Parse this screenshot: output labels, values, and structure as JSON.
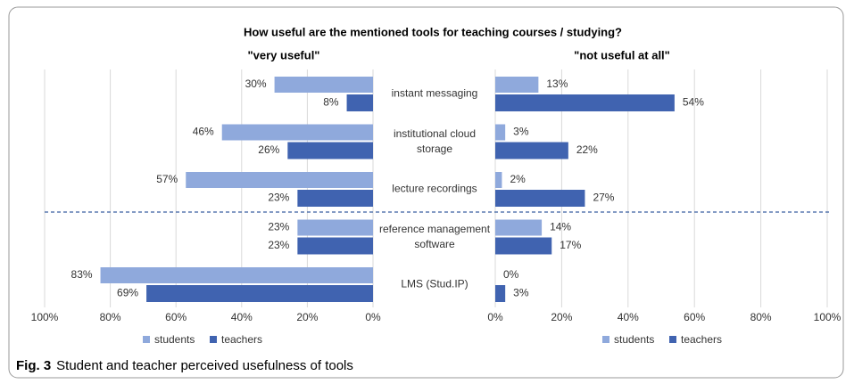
{
  "title": "How useful are the mentioned tools for teaching courses / studying?",
  "caption": {
    "label": "Fig. 3",
    "text": "Student and teacher perceived usefulness of tools"
  },
  "chart_data": [
    {
      "type": "bar",
      "orientation": "horizontal",
      "subtitle": "\"very useful\"",
      "categories": [
        "instant messaging",
        "institutional cloud storage",
        "lecture recordings",
        "reference management software",
        "LMS (Stud.IP)"
      ],
      "series": [
        {
          "name": "students",
          "color": "#8fa9dc",
          "values": [
            30,
            46,
            57,
            23,
            83
          ],
          "value_labels": [
            "30%",
            "46%",
            "57%",
            "23%",
            "83%"
          ]
        },
        {
          "name": "teachers",
          "color": "#4063b0",
          "values": [
            8,
            26,
            23,
            23,
            69
          ],
          "value_labels": [
            "8%",
            "26%",
            "23%",
            "23%",
            "69%"
          ]
        }
      ],
      "xlim": [
        100,
        0
      ],
      "xticks": [
        {
          "value": 100,
          "label": "100%"
        },
        {
          "value": 80,
          "label": "80%"
        },
        {
          "value": 60,
          "label": "60%"
        },
        {
          "value": 40,
          "label": "40%"
        },
        {
          "value": 20,
          "label": "20%"
        },
        {
          "value": 0,
          "label": "0%"
        }
      ],
      "grid": true,
      "legend": "bottom"
    },
    {
      "type": "bar",
      "orientation": "horizontal",
      "subtitle": "\"not useful at all\"",
      "series": [
        {
          "name": "students",
          "color": "#8fa9dc",
          "values": [
            13,
            3,
            2,
            14,
            0
          ],
          "value_labels": [
            "13%",
            "3%",
            "2%",
            "14%",
            "0%"
          ]
        },
        {
          "name": "teachers",
          "color": "#4063b0",
          "values": [
            54,
            22,
            27,
            17,
            3
          ],
          "value_labels": [
            "54%",
            "22%",
            "27%",
            "17%",
            "3%"
          ]
        }
      ],
      "xlim": [
        0,
        100
      ],
      "xticks": [
        {
          "value": 0,
          "label": "0%"
        },
        {
          "value": 20,
          "label": "20%"
        },
        {
          "value": 40,
          "label": "40%"
        },
        {
          "value": 60,
          "label": "60%"
        },
        {
          "value": 80,
          "label": "80%"
        },
        {
          "value": 100,
          "label": "100%"
        }
      ],
      "grid": true,
      "legend": "bottom"
    }
  ]
}
